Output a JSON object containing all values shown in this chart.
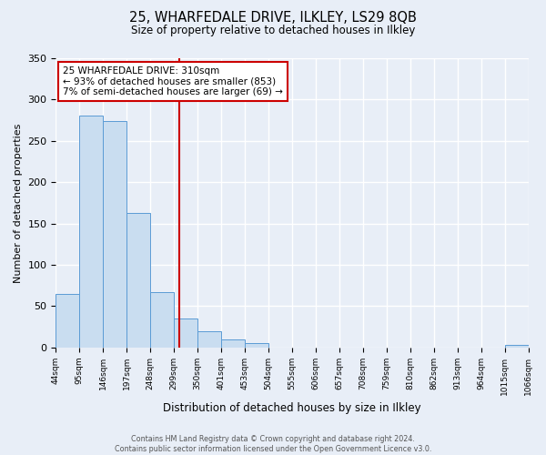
{
  "title1": "25, WHARFEDALE DRIVE, ILKLEY, LS29 8QB",
  "title2": "Size of property relative to detached houses in Ilkley",
  "xlabel": "Distribution of detached houses by size in Ilkley",
  "ylabel": "Number of detached properties",
  "bin_labels": [
    "44sqm",
    "95sqm",
    "146sqm",
    "197sqm",
    "248sqm",
    "299sqm",
    "350sqm",
    "401sqm",
    "453sqm",
    "504sqm",
    "555sqm",
    "606sqm",
    "657sqm",
    "708sqm",
    "759sqm",
    "810sqm",
    "862sqm",
    "913sqm",
    "964sqm",
    "1015sqm",
    "1066sqm"
  ],
  "bar_heights": [
    65,
    281,
    274,
    163,
    67,
    35,
    20,
    10,
    5,
    0,
    0,
    0,
    0,
    0,
    0,
    0,
    0,
    0,
    0,
    3
  ],
  "bar_color": "#c9ddf0",
  "bar_edge_color": "#5b9bd5",
  "ylim": [
    0,
    350
  ],
  "yticks": [
    0,
    50,
    100,
    150,
    200,
    250,
    300,
    350
  ],
  "vline_color": "#cc0000",
  "annotation_title": "25 WHARFEDALE DRIVE: 310sqm",
  "annotation_line1": "← 93% of detached houses are smaller (853)",
  "annotation_line2": "7% of semi-detached houses are larger (69) →",
  "annotation_box_color": "#ffffff",
  "annotation_box_edge": "#cc0000",
  "footer1": "Contains HM Land Registry data © Crown copyright and database right 2024.",
  "footer2": "Contains public sector information licensed under the Open Government Licence v3.0.",
  "bg_color": "#e8eef7",
  "plot_bg_color": "#e8eef7",
  "grid_color": "#ffffff"
}
